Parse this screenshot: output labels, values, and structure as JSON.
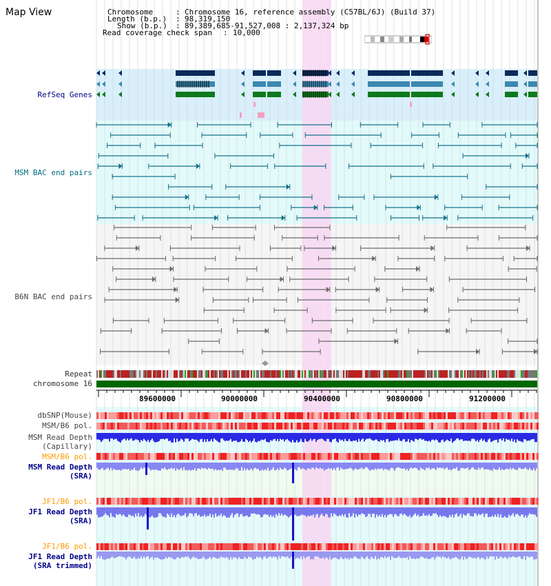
{
  "page": {
    "title": "Map View"
  },
  "header": {
    "chromosome_label": "Chromosome",
    "chromosome_value": "Chromosome 16, reference assembly (C57BL/6J) (Build 37)",
    "length_label": "Length (b.p.)",
    "length_value": "98,319,150",
    "show_label": "Show (b.p.)",
    "show_value": "89,389,685-91,527,008 : 2,137,324 bp",
    "coverage_label": "Read coverage check span",
    "coverage_value": "10,000"
  },
  "tracks": {
    "refseq": "RefSeq Genes",
    "msm_bac": "MSM BAC end pairs",
    "b6n_bac": "B6N BAC end pairs",
    "repeat": "Repeat",
    "chromosome": "chromosome 16",
    "dbsnp": "dbSNP(Mouse)",
    "msm_b6_pol_1": "MSM/B6 pol.",
    "msm_read_depth_cap_1": "MSM Read Depth",
    "msm_read_depth_cap_2": "(Capillary)",
    "msm_b6_pol_2": "MSM/B6 pol.",
    "msm_read_depth_sra_1": "MSM Read Depth",
    "msm_read_depth_sra_2": "(SRA)",
    "jf1_b6_pol_1": "JF1/B6 pol.",
    "jf1_read_depth_sra_1": "JF1 Read Depth",
    "jf1_read_depth_sra_2": "(SRA)",
    "jf1_b6_pol_2": "JF1/B6 pol.",
    "jf1_read_depth_trim_1": "JF1 Read Depth",
    "jf1_read_depth_trim_2": "(SRA trimmed)"
  },
  "axis": {
    "ticks": [
      "89600000",
      "90000000",
      "90400000",
      "90800000",
      "91200000"
    ]
  },
  "colors": {
    "refseq_bg": "#d9effb",
    "msm_bg": "#e2fafa",
    "b6n_bg": "#f5f5f5",
    "highlight": "#f7d7f2",
    "chrom": "#006600"
  }
}
